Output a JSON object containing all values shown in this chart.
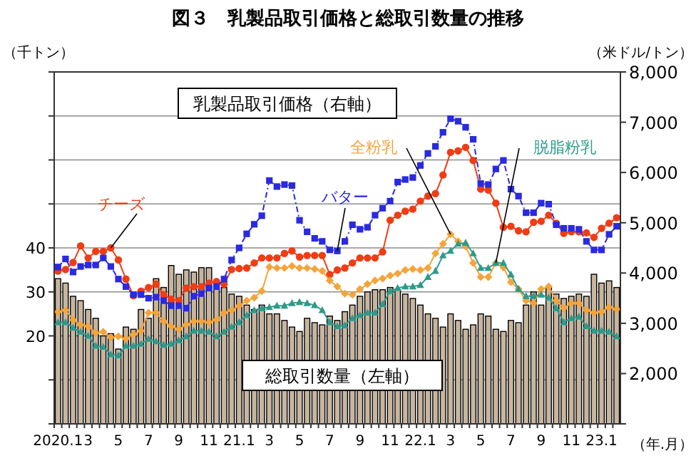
{
  "chart_data": {
    "type": "bar",
    "title": "図３　乳製品取引価格と総取引数量の推移",
    "xlabel": "（年.月）",
    "ylabel": "（千トン）",
    "y2label": "（米ドル/トン）",
    "categories": [
      "2020.1",
      null,
      null,
      null,
      "3",
      null,
      null,
      null,
      "5",
      null,
      null,
      null,
      "7",
      null,
      null,
      null,
      "9",
      null,
      null,
      null,
      "11",
      null,
      null,
      null,
      "21.1",
      null,
      null,
      null,
      "3",
      null,
      null,
      null,
      "5",
      null,
      null,
      null,
      "7",
      null,
      null,
      null,
      "9",
      null,
      null,
      null,
      "11",
      null,
      null,
      null,
      "22.1",
      null,
      null,
      null,
      "3",
      null,
      null,
      null,
      "5",
      null,
      null,
      null,
      "7",
      null,
      null,
      null,
      "9",
      null,
      null,
      null,
      "11",
      null,
      null,
      null,
      "23.1",
      null,
      null
    ],
    "ylim": [
      0,
      80
    ],
    "yticks": [
      {
        "value": 0,
        "label": null
      },
      {
        "value": 10,
        "label": null
      },
      20,
      30,
      40,
      {
        "value": 50,
        "label": null
      },
      {
        "value": 60,
        "label": null
      },
      {
        "value": 70,
        "label": null
      },
      {
        "value": 80,
        "label": null
      }
    ],
    "y2lim": [
      1000,
      8000
    ],
    "y2ticks": [
      {
        "value": 1000,
        "label": null
      },
      {
        "value": 2000,
        "label": "2,000"
      },
      {
        "value": 3000,
        "label": "3,000"
      },
      {
        "value": 4000,
        "label": "4,000"
      },
      {
        "value": 5000,
        "label": "5,000"
      },
      {
        "value": 6000,
        "label": "6,000"
      },
      {
        "value": 7000,
        "label": "7,000"
      },
      {
        "value": 8000,
        "label": "8,000"
      }
    ],
    "grid": "y",
    "annotations": [
      "乳製品取引価格（右軸）"
    ],
    "series": [
      {
        "name": "総取引数量（左軸）",
        "color": "#c8b59e",
        "values": [
          33,
          32,
          29,
          28,
          26,
          24,
          20,
          20.5,
          17,
          22,
          21.5,
          26,
          24,
          33,
          31,
          36,
          34,
          35,
          34.5,
          35.5,
          35.5,
          32,
          31,
          29.5,
          29,
          27,
          26,
          27,
          25,
          25,
          23.5,
          22,
          21,
          24,
          23,
          22.5,
          24.5,
          23.5,
          25.5,
          27,
          29,
          30,
          30.5,
          30.5,
          31,
          30.5,
          29.5,
          28.5,
          27,
          25,
          24,
          22,
          25,
          23.5,
          21.5,
          22.5,
          25,
          24.5,
          21.5,
          21,
          23.5,
          23,
          27,
          30,
          27,
          31,
          29.5,
          28.5,
          29,
          29.5,
          29,
          34,
          32,
          32.5,
          31
        ]
      },
      {
        "name": "チーズ",
        "type": "line",
        "axis": "y2",
        "color": "#f03c14",
        "marker": "circle",
        "line_style": "solid",
        "values": [
          4040,
          4070,
          4210,
          4540,
          4300,
          4430,
          4430,
          4500,
          4260,
          3880,
          3550,
          3640,
          3710,
          3780,
          3570,
          3480,
          3450,
          3700,
          3730,
          3730,
          3800,
          3830,
          3780,
          4070,
          4090,
          4100,
          4200,
          4300,
          4300,
          4300,
          4390,
          4440,
          4320,
          4350,
          4350,
          4350,
          3970,
          4060,
          4100,
          4200,
          4300,
          4300,
          4300,
          4420,
          5050,
          5150,
          5230,
          5270,
          5430,
          5530,
          5580,
          5950,
          6400,
          6430,
          6500,
          6240,
          5670,
          5650,
          5390,
          4910,
          4930,
          4840,
          4820,
          5010,
          5030,
          5150,
          4990,
          4790,
          4820,
          4820,
          4800,
          4710,
          4890,
          4990,
          5100
        ]
      },
      {
        "name": "バター",
        "type": "line",
        "axis": "y2",
        "color": "#2a2ae0",
        "marker": "square",
        "line_style": "dashed",
        "values": [
          4120,
          4280,
          4020,
          4130,
          4160,
          4160,
          4300,
          4130,
          3880,
          3730,
          3570,
          3570,
          3500,
          3520,
          3450,
          3350,
          3350,
          3300,
          3540,
          3590,
          3700,
          3730,
          3880,
          4260,
          4500,
          4780,
          4970,
          5140,
          5840,
          5720,
          5760,
          5740,
          5050,
          4820,
          4690,
          4630,
          4460,
          4440,
          4630,
          4960,
          4870,
          4910,
          5150,
          5290,
          5430,
          5810,
          5860,
          5900,
          6140,
          6380,
          6520,
          6800,
          7070,
          7020,
          6900,
          6660,
          5780,
          5760,
          6070,
          6240,
          5670,
          5530,
          5200,
          5200,
          5390,
          5370,
          4960,
          4890,
          4890,
          4870,
          4630,
          4460,
          4460,
          4770,
          4930
        ]
      },
      {
        "name": "全粉乳",
        "type": "line",
        "axis": "y2",
        "color": "#f4a43a",
        "marker": "diamond",
        "line_style": "solid",
        "values": [
          3230,
          3260,
          3070,
          2970,
          2940,
          2810,
          2830,
          2720,
          2740,
          2690,
          2780,
          2850,
          3210,
          3210,
          3040,
          2940,
          2880,
          2970,
          3040,
          3040,
          3020,
          3070,
          3210,
          3260,
          3350,
          3450,
          3510,
          3640,
          4120,
          4100,
          4100,
          4140,
          4100,
          4100,
          4080,
          4040,
          3850,
          3730,
          3590,
          3570,
          3680,
          3780,
          3850,
          3890,
          3950,
          3990,
          4060,
          4080,
          4060,
          4100,
          4390,
          4580,
          4770,
          4630,
          4530,
          4200,
          3920,
          3920,
          4200,
          4110,
          3820,
          3680,
          3450,
          3400,
          3680,
          3730,
          3450,
          3300,
          3400,
          3400,
          3260,
          3210,
          3230,
          3320,
          3280
        ]
      },
      {
        "name": "脱脂粉乳",
        "type": "line",
        "axis": "y2",
        "color": "#2e9a8a",
        "marker": "triangle",
        "line_style": "solid",
        "values": [
          3020,
          3020,
          2910,
          2830,
          2750,
          2550,
          2530,
          2380,
          2360,
          2550,
          2550,
          2590,
          2690,
          2640,
          2570,
          2590,
          2660,
          2740,
          2850,
          2850,
          2830,
          2740,
          2830,
          2930,
          3020,
          3160,
          3260,
          3300,
          3320,
          3350,
          3350,
          3400,
          3420,
          3400,
          3360,
          3260,
          3020,
          2940,
          2960,
          3100,
          3160,
          3210,
          3210,
          3380,
          3640,
          3700,
          3730,
          3730,
          3760,
          3920,
          4040,
          4350,
          4440,
          4580,
          4600,
          4390,
          4100,
          4100,
          4200,
          4200,
          3970,
          3680,
          3540,
          3540,
          3570,
          3510,
          3300,
          3020,
          3100,
          3130,
          2940,
          2850,
          2850,
          2830,
          2740
        ]
      }
    ]
  }
}
